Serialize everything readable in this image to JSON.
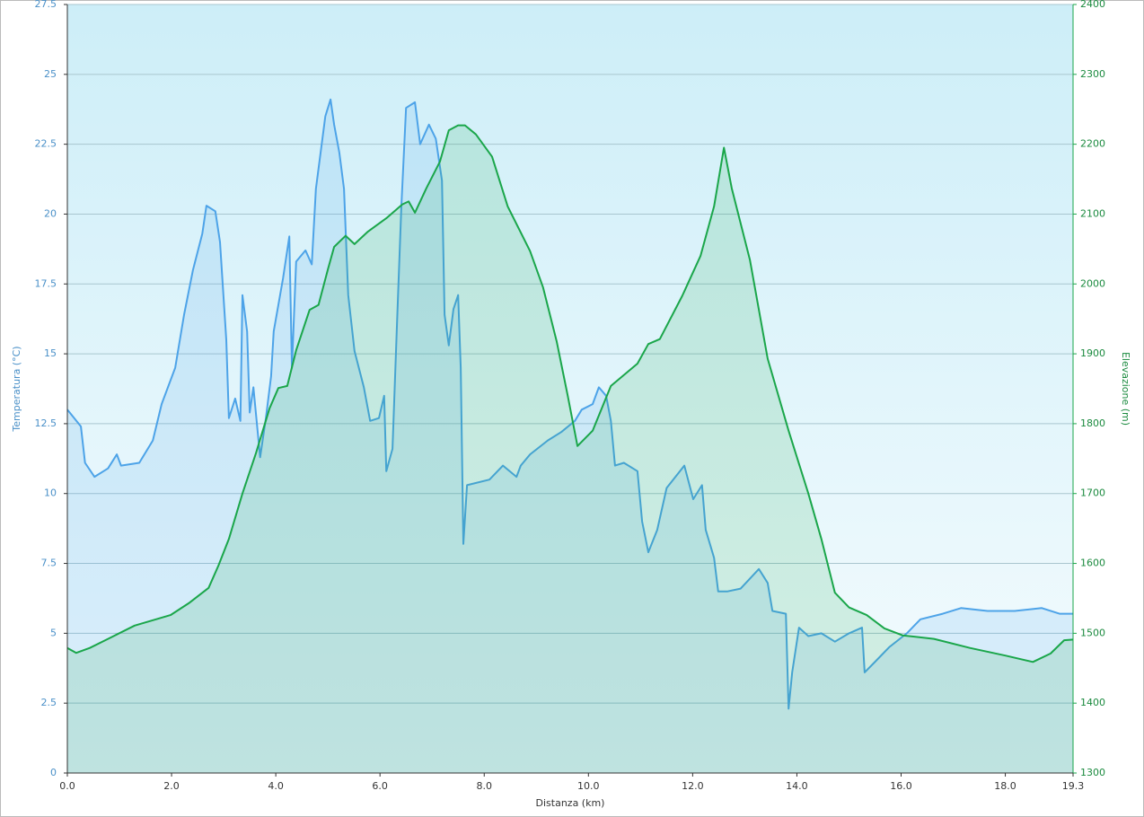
{
  "chart_data": {
    "type": "area",
    "xlabel": "Distanza  (km)",
    "ylabel": "Temperatura (°C)",
    "y2label": "Elevazione (m)",
    "xlim": [
      0,
      19.3
    ],
    "xticks": [
      {
        "value": 0,
        "label": "0.0"
      },
      {
        "value": 2,
        "label": "2.0"
      },
      {
        "value": 4,
        "label": "4.0"
      },
      {
        "value": 6,
        "label": "6.0"
      },
      {
        "value": 8,
        "label": "8.0"
      },
      {
        "value": 10,
        "label": "10.0"
      },
      {
        "value": 12,
        "label": "12.0"
      },
      {
        "value": 14,
        "label": "14.0"
      },
      {
        "value": 16,
        "label": "16.0"
      },
      {
        "value": 18,
        "label": "18.0"
      },
      {
        "value": 19.3,
        "label": "19.3"
      }
    ],
    "ylim": [
      0,
      27.5
    ],
    "yticks": [
      0,
      2.5,
      5,
      7.5,
      10,
      12.5,
      15,
      17.5,
      20,
      22.5,
      25,
      27.5
    ],
    "y2lim": [
      1300,
      2400
    ],
    "y2ticks": [
      1300,
      1400,
      1500,
      1600,
      1700,
      1800,
      1900,
      2000,
      2100,
      2200,
      2300,
      2400
    ],
    "grid": true,
    "series": [
      {
        "color": "#4da3e8",
        "x": [
          0,
          0.26,
          0.34,
          0.52,
          0.78,
          0.95,
          1.03,
          1.38,
          1.64,
          1.81,
          2.07,
          2.24,
          2.41,
          2.59,
          2.67,
          2.84,
          2.93,
          3.05,
          3.1,
          3.22,
          3.32,
          3.36,
          3.45,
          3.5,
          3.57,
          3.7,
          3.81,
          3.91,
          3.96,
          4.14,
          4.26,
          4.31,
          4.39,
          4.57,
          4.69,
          4.77,
          4.95,
          5.05,
          5.12,
          5.22,
          5.31,
          5.39,
          5.51,
          5.69,
          5.81,
          5.98,
          6.08,
          6.12,
          6.24,
          6.32,
          6.41,
          6.5,
          6.67,
          6.77,
          6.94,
          7.07,
          7.19,
          7.24,
          7.32,
          7.41,
          7.5,
          7.55,
          7.6,
          7.67,
          8.1,
          8.36,
          8.62,
          8.7,
          8.88,
          9.22,
          9.48,
          9.74,
          9.87,
          10.08,
          10.2,
          10.34,
          10.43,
          10.51,
          10.68,
          10.94,
          11.03,
          11.15,
          11.32,
          11.5,
          11.67,
          11.84,
          12.01,
          12.18,
          12.25,
          12.41,
          12.49,
          12.67,
          12.92,
          13.27,
          13.44,
          13.53,
          13.79,
          13.84,
          13.91,
          14.04,
          14.22,
          14.47,
          14.73,
          15,
          15.25,
          15.3,
          15.51,
          15.77,
          16.11,
          16.37,
          16.8,
          17.15,
          17.66,
          18.18,
          18.7,
          19.04,
          19.3
        ],
        "values": [
          13.0,
          12.4,
          11.1,
          10.6,
          10.9,
          11.4,
          11.0,
          11.1,
          11.9,
          13.2,
          14.5,
          16.4,
          18.0,
          19.3,
          20.3,
          20.1,
          19.0,
          15.5,
          12.7,
          13.4,
          12.6,
          17.1,
          15.8,
          12.9,
          13.8,
          11.3,
          12.7,
          14.2,
          15.8,
          17.7,
          19.2,
          14.5,
          18.3,
          18.7,
          18.2,
          20.9,
          23.5,
          24.1,
          23.2,
          22.2,
          20.9,
          17.1,
          15.1,
          13.8,
          12.6,
          12.7,
          13.5,
          10.8,
          11.6,
          15.8,
          20.3,
          23.8,
          24.0,
          22.5,
          23.2,
          22.7,
          21.2,
          16.4,
          15.3,
          16.6,
          17.1,
          14.5,
          8.2,
          10.3,
          10.5,
          11.0,
          10.6,
          11.0,
          11.4,
          11.9,
          12.2,
          12.6,
          13.0,
          13.2,
          13.8,
          13.5,
          12.6,
          11.0,
          11.1,
          10.8,
          9.0,
          7.9,
          8.7,
          10.2,
          10.6,
          11.0,
          9.8,
          10.3,
          8.7,
          7.7,
          6.5,
          6.5,
          6.6,
          7.3,
          6.8,
          5.8,
          5.7,
          2.3,
          3.6,
          5.2,
          4.9,
          5.0,
          4.7,
          5.0,
          5.2,
          3.6,
          4.0,
          4.5,
          5.0,
          5.5,
          5.7,
          5.9,
          5.8,
          5.8,
          5.9,
          5.7,
          5.7
        ]
      },
      {
        "color": "#1aa64a",
        "axis": "y2",
        "x": [
          0,
          0.17,
          0.43,
          0.78,
          1.29,
          1.98,
          2.33,
          2.71,
          2.9,
          3.1,
          3.36,
          3.62,
          3.88,
          4.05,
          4.22,
          4.39,
          4.65,
          4.82,
          5,
          5.12,
          5.34,
          5.51,
          5.77,
          6.12,
          6.43,
          6.55,
          6.67,
          6.89,
          7.15,
          7.32,
          7.5,
          7.63,
          7.84,
          8.15,
          8.45,
          8.88,
          9.13,
          9.39,
          9.6,
          9.79,
          10.08,
          10.43,
          10.94,
          11.15,
          11.37,
          11.8,
          12.15,
          12.41,
          12.6,
          12.75,
          13.1,
          13.44,
          13.84,
          14.22,
          14.47,
          14.73,
          15,
          15.34,
          15.68,
          16.03,
          16.63,
          17.32,
          18.01,
          18.53,
          18.87,
          19.13,
          19.3
        ],
        "values": [
          1479,
          1472,
          1479,
          1492,
          1511,
          1526,
          1543,
          1565,
          1597,
          1635,
          1700,
          1758,
          1822,
          1851,
          1854,
          1905,
          1963,
          1970,
          2021,
          2053,
          2069,
          2057,
          2075,
          2094,
          2114,
          2118,
          2102,
          2137,
          2175,
          2220,
          2227,
          2227,
          2214,
          2182,
          2111,
          2047,
          1995,
          1918,
          1841,
          1768,
          1790,
          1854,
          1886,
          1914,
          1921,
          1983,
          2040,
          2111,
          2195,
          2137,
          2034,
          1893,
          1790,
          1700,
          1635,
          1558,
          1537,
          1526,
          1507,
          1497,
          1492,
          1479,
          1468,
          1459,
          1471,
          1490,
          1491
        ]
      }
    ]
  }
}
